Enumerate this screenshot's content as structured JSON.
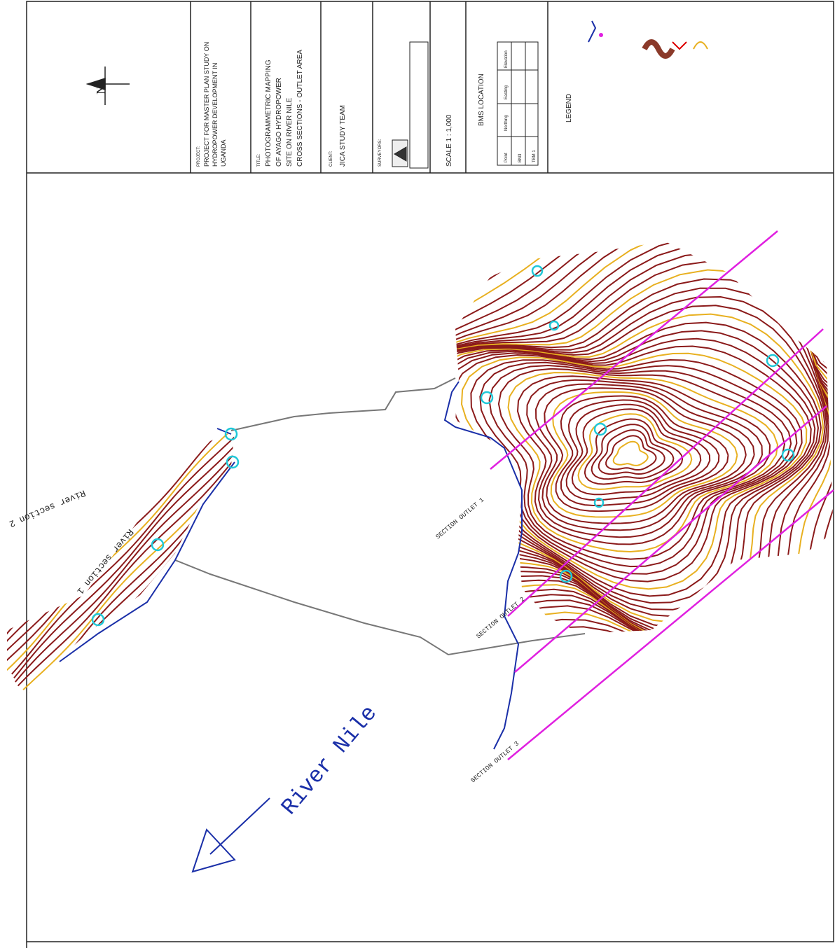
{
  "title_block": {
    "north": "N",
    "project_label": "PROJECT:",
    "project_lines": [
      "PROJECT FOR MASTER PLAN STUDY ON",
      "HYDROPOWER DEVELOPMENT IN",
      "UGANDA"
    ],
    "title_label": "TITLE:",
    "title_lines": [
      "PHOTOGRAMMETRIC MAPPING",
      "OF AYAGO HYDROPOWER",
      "SITE ON RIVER NILE",
      "CROSS SECTIONS - OUTLET AREA"
    ],
    "client_label": "CLIENT:",
    "client": "JICA STUDY TEAM",
    "surveyors_label": "SURVEYORS:",
    "scale": "SCALE 1 : 1,000",
    "bms_title": "BMS LOCATION",
    "bms_header": [
      "Point",
      "Northing",
      "Easting",
      "Elevation"
    ],
    "bms_points": [
      "BM3",
      "TBM 1"
    ],
    "legend_title": "LEGEND"
  },
  "map": {
    "river": "River Nile",
    "river_sections": [
      "River section 1",
      "River section 2"
    ],
    "outlet_sections": [
      "SECTION OUTLET 1",
      "SECTION OUTLET 2",
      "SECTION OUTLET 3"
    ]
  }
}
